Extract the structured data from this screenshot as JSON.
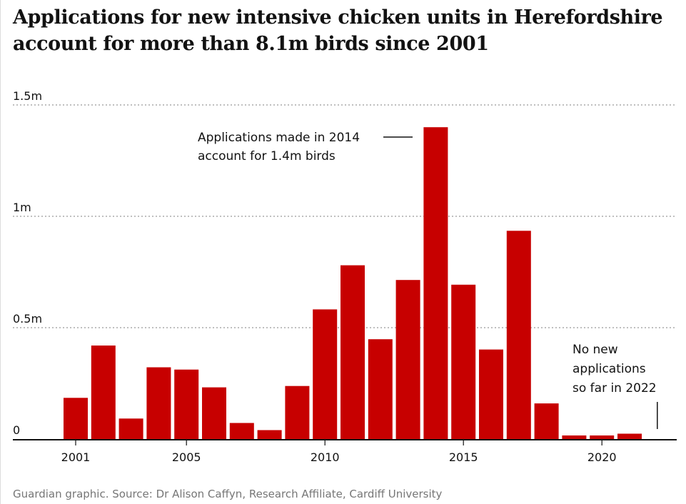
{
  "title": {
    "line1": "Applications for new intensive chicken units in Herefordshire",
    "line2": "account for more than 8.1m birds since 2001"
  },
  "source": "Guardian graphic. Source: Dr Alison Caffyn, Research Affiliate, Cardiff University",
  "colors": {
    "bar": "#c70000",
    "text": "#121212",
    "muted": "#767676",
    "gridline": "#999999",
    "axis": "#121212"
  },
  "chart_data": {
    "type": "bar",
    "title": "Applications for new intensive chicken units in Herefordshire account for more than 8.1m birds since 2001",
    "xlabel": "",
    "ylabel": "",
    "ylim": [
      0,
      1500000
    ],
    "grid": true,
    "categories": [
      2001,
      2002,
      2003,
      2004,
      2005,
      2006,
      2007,
      2008,
      2009,
      2010,
      2011,
      2012,
      2013,
      2014,
      2015,
      2016,
      2017,
      2018,
      2019,
      2020,
      2021
    ],
    "values": [
      185000,
      420000,
      92000,
      322000,
      312000,
      232000,
      72000,
      40000,
      238000,
      582000,
      780000,
      448000,
      714000,
      1400000,
      693000,
      402000,
      935000,
      160000,
      16000,
      16000,
      24000
    ],
    "y_ticks": [
      {
        "value": 0,
        "label": "0"
      },
      {
        "value": 500000,
        "label": "0.5m"
      },
      {
        "value": 1000000,
        "label": "1m"
      },
      {
        "value": 1500000,
        "label": "1.5m"
      }
    ],
    "x_ticks": [
      {
        "value": 2001,
        "label": "2001"
      },
      {
        "value": 2005,
        "label": "2005"
      },
      {
        "value": 2010,
        "label": "2010"
      },
      {
        "value": 2015,
        "label": "2015"
      },
      {
        "value": 2020,
        "label": "2020"
      }
    ],
    "annotations": [
      {
        "id": "annotation-2014",
        "year": 2014,
        "lines": [
          "Applications made in 2014",
          "account for 1.4m birds"
        ]
      },
      {
        "id": "annotation-2022",
        "year": 2022,
        "lines": [
          "No new",
          "applications",
          "so far in 2022"
        ]
      }
    ]
  }
}
